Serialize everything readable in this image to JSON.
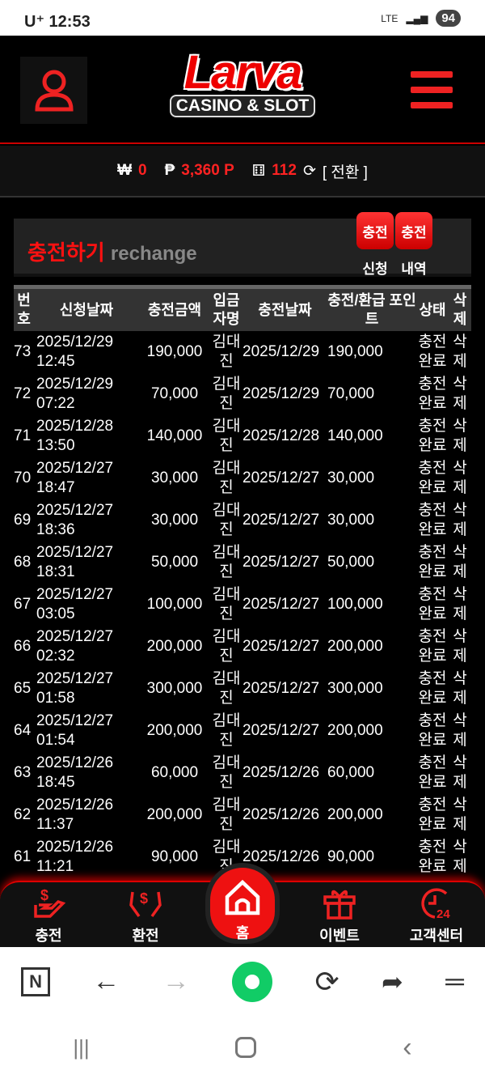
{
  "status": {
    "carrier": "U⁺ 12:53",
    "network": "LTE",
    "battery": "94"
  },
  "header": {
    "logo_main": "Larva",
    "logo_sub": "CASINO & SLOT"
  },
  "balance": {
    "won_symbol": "₩",
    "won": "0",
    "point_symbol": "₱",
    "points": "3,360 P",
    "chips": "112",
    "switch": "[ 전환 ]"
  },
  "section": {
    "title": "충전하기",
    "subtitle": "rechange",
    "buttons": [
      {
        "icon": "충전",
        "label": "신청"
      },
      {
        "icon": "충전",
        "label": "내역"
      }
    ]
  },
  "table": {
    "headers": [
      "번호",
      "신청날짜",
      "충전금액",
      "입금자명",
      "충전날짜",
      "충전/환급 포인트",
      "상태",
      "삭제"
    ],
    "rows": [
      [
        "73",
        "2025/12/29 12:45",
        "190,000",
        "김대진",
        "2025/12/29",
        "190,000",
        "충전완료",
        "삭제"
      ],
      [
        "72",
        "2025/12/29 07:22",
        "70,000",
        "김대진",
        "2025/12/29",
        "70,000",
        "충전완료",
        "삭제"
      ],
      [
        "71",
        "2025/12/28 13:50",
        "140,000",
        "김대진",
        "2025/12/28",
        "140,000",
        "충전완료",
        "삭제"
      ],
      [
        "70",
        "2025/12/27 18:47",
        "30,000",
        "김대진",
        "2025/12/27",
        "30,000",
        "충전완료",
        "삭제"
      ],
      [
        "69",
        "2025/12/27 18:36",
        "30,000",
        "김대진",
        "2025/12/27",
        "30,000",
        "충전완료",
        "삭제"
      ],
      [
        "68",
        "2025/12/27 18:31",
        "50,000",
        "김대진",
        "2025/12/27",
        "50,000",
        "충전완료",
        "삭제"
      ],
      [
        "67",
        "2025/12/27 03:05",
        "100,000",
        "김대진",
        "2025/12/27",
        "100,000",
        "충전완료",
        "삭제"
      ],
      [
        "66",
        "2025/12/27 02:32",
        "200,000",
        "김대진",
        "2025/12/27",
        "200,000",
        "충전완료",
        "삭제"
      ],
      [
        "65",
        "2025/12/27 01:58",
        "300,000",
        "김대진",
        "2025/12/27",
        "300,000",
        "충전완료",
        "삭제"
      ],
      [
        "64",
        "2025/12/27 01:54",
        "200,000",
        "김대진",
        "2025/12/27",
        "200,000",
        "충전완료",
        "삭제"
      ],
      [
        "63",
        "2025/12/26 18:45",
        "60,000",
        "김대진",
        "2025/12/26",
        "60,000",
        "충전완료",
        "삭제"
      ],
      [
        "62",
        "2025/12/26 11:37",
        "200,000",
        "김대진",
        "2025/12/26",
        "200,000",
        "충전완료",
        "삭제"
      ],
      [
        "61",
        "2025/12/26 11:21",
        "90,000",
        "김대진",
        "2025/12/26",
        "90,000",
        "충전완료",
        "삭제"
      ]
    ]
  },
  "bottom_nav": [
    {
      "label": "충전",
      "icon": "hand-dollar-icon"
    },
    {
      "label": "환전",
      "icon": "hands-dollar-icon"
    },
    {
      "label": "홈",
      "icon": "home-icon"
    },
    {
      "label": "이벤트",
      "icon": "gift-icon"
    },
    {
      "label": "고객센터",
      "icon": "clock-24-icon"
    }
  ],
  "colors": {
    "accent": "#ee1111",
    "bg": "#000000"
  }
}
